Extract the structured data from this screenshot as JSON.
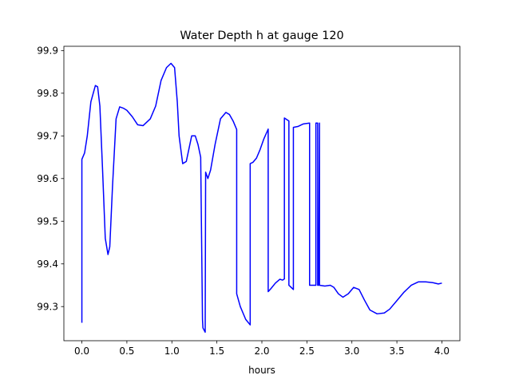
{
  "chart_data": {
    "type": "line",
    "title": "Water Depth h at gauge 120",
    "xlabel": "hours",
    "ylabel": "",
    "xlim": [
      -0.2,
      4.2
    ],
    "ylim": [
      99.22,
      99.91
    ],
    "xticks": [
      0.0,
      0.5,
      1.0,
      1.5,
      2.0,
      2.5,
      3.0,
      3.5,
      4.0
    ],
    "xtick_labels": [
      "0.0",
      "0.5",
      "1.0",
      "1.5",
      "2.0",
      "2.5",
      "3.0",
      "3.5",
      "4.0"
    ],
    "yticks": [
      99.3,
      99.4,
      99.5,
      99.6,
      99.7,
      99.8,
      99.9
    ],
    "ytick_labels": [
      "99.3",
      "99.4",
      "99.5",
      "99.6",
      "99.7",
      "99.8",
      "99.9"
    ],
    "grid": false,
    "series": [
      {
        "color": "#0000ff",
        "x": [
          0.0,
          0.0,
          0.0,
          0.03,
          0.06,
          0.1,
          0.15,
          0.175,
          0.2,
          0.23,
          0.26,
          0.29,
          0.31,
          0.34,
          0.38,
          0.42,
          0.46,
          0.5,
          0.56,
          0.62,
          0.68,
          0.72,
          0.76,
          0.82,
          0.88,
          0.94,
          0.99,
          1.03,
          1.06,
          1.08,
          1.12,
          1.16,
          1.18,
          1.22,
          1.26,
          1.29,
          1.32,
          1.34,
          1.345,
          1.37,
          1.375,
          1.4,
          1.43,
          1.48,
          1.54,
          1.6,
          1.64,
          1.68,
          1.72,
          1.72,
          1.76,
          1.82,
          1.87,
          1.87,
          1.9,
          1.94,
          1.98,
          2.02,
          2.07,
          2.07,
          2.1,
          2.15,
          2.2,
          2.23,
          2.25,
          2.25,
          2.3,
          2.3,
          2.35,
          2.35,
          2.4,
          2.46,
          2.53,
          2.53,
          2.6,
          2.6,
          2.62,
          2.62,
          2.63,
          2.64,
          2.64,
          2.7,
          2.76,
          2.8,
          2.85,
          2.9,
          2.96,
          3.02,
          3.08,
          3.14,
          3.2,
          3.28,
          3.36,
          3.42,
          3.5,
          3.58,
          3.66,
          3.74,
          3.82,
          3.9,
          3.96,
          4.0
        ],
        "y": [
          99.262,
          99.4,
          99.645,
          99.66,
          99.7,
          99.78,
          99.818,
          99.815,
          99.77,
          99.62,
          99.46,
          99.422,
          99.44,
          99.58,
          99.74,
          99.768,
          99.765,
          99.76,
          99.745,
          99.726,
          99.724,
          99.732,
          99.74,
          99.77,
          99.83,
          99.86,
          99.87,
          99.86,
          99.78,
          99.7,
          99.635,
          99.64,
          99.66,
          99.7,
          99.7,
          99.68,
          99.65,
          99.27,
          99.25,
          99.24,
          99.615,
          99.6,
          99.62,
          99.68,
          99.74,
          99.755,
          99.75,
          99.735,
          99.715,
          99.33,
          99.3,
          99.27,
          99.257,
          99.635,
          99.638,
          99.648,
          99.668,
          99.692,
          99.716,
          99.335,
          99.342,
          99.355,
          99.364,
          99.362,
          99.365,
          99.742,
          99.735,
          99.35,
          99.34,
          99.72,
          99.722,
          99.728,
          99.73,
          99.35,
          99.35,
          99.73,
          99.73,
          99.35,
          99.35,
          99.73,
          99.35,
          99.348,
          99.35,
          99.345,
          99.33,
          99.322,
          99.33,
          99.345,
          99.34,
          99.315,
          99.292,
          99.283,
          99.285,
          99.294,
          99.314,
          99.334,
          99.35,
          99.358,
          99.358,
          99.356,
          99.353,
          99.355
        ]
      }
    ]
  }
}
